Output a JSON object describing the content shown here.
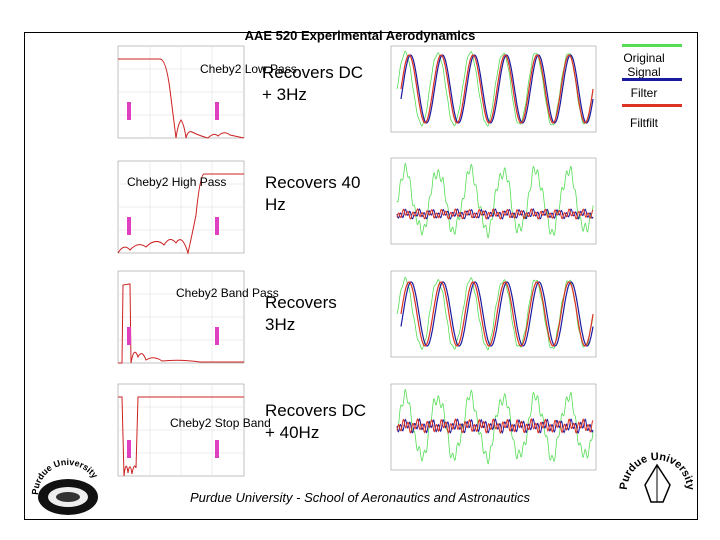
{
  "title": "AAE 520 Experimental Aerodynamics",
  "footer": "Purdue University - School of Aeronautics and Astronautics",
  "legend": {
    "items": [
      {
        "label": "Original Signal",
        "color": "#55dd55"
      },
      {
        "label": "Filter",
        "color": "#1a1aa0"
      },
      {
        "label": "Filtfilt",
        "color": "#dd3322"
      }
    ]
  },
  "rows": [
    {
      "filter_label": "Cheby2 Low Pass",
      "recovers": "Recovers DC + 3Hz"
    },
    {
      "filter_label": "Cheby2 High Pass",
      "recovers": "Recovers 40 Hz"
    },
    {
      "filter_label": "Cheby2 Band Pass",
      "recovers": "Recovers 3Hz"
    },
    {
      "filter_label": "Cheby2 Stop Band",
      "recovers": "Recovers DC + 40Hz"
    }
  ],
  "logos": {
    "left_seal_text": "Purdue University",
    "right_seal_text": "Purdue University"
  }
}
